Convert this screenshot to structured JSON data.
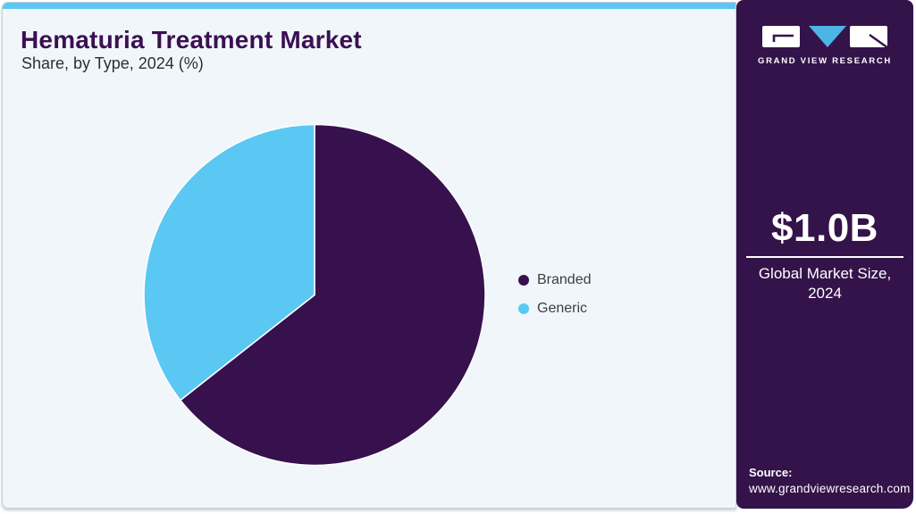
{
  "header": {
    "title": "Hematuria Treatment Market",
    "subtitle": "Share, by Type, 2024 (%)"
  },
  "chart_data": {
    "type": "pie",
    "title": "Hematuria Treatment Market Share, by Type, 2024 (%)",
    "categories": [
      "Branded",
      "Generic"
    ],
    "values": [
      64.4,
      35.6
    ],
    "unit": "%",
    "colors": [
      "#37114d",
      "#5bc8f3"
    ],
    "start_angle_deg": 0,
    "direction": "clockwise",
    "legend_position": "right",
    "data_labels_shown": false
  },
  "sidebar": {
    "brand": {
      "logo_name": "gvr-logo",
      "logo_text": "GRAND VIEW RESEARCH"
    },
    "market_size": {
      "value": "$1.0B",
      "label_line1": "Global Market Size,",
      "label_line2": "2024"
    },
    "source": {
      "label": "Source:",
      "url": "www.grandviewresearch.com"
    }
  },
  "colors": {
    "brand_purple": "#34134a",
    "title_purple": "#3b1052",
    "accent_blue": "#5bc8f3",
    "card_background": "#f0f6fa",
    "legend_text": "#3d3d42"
  }
}
